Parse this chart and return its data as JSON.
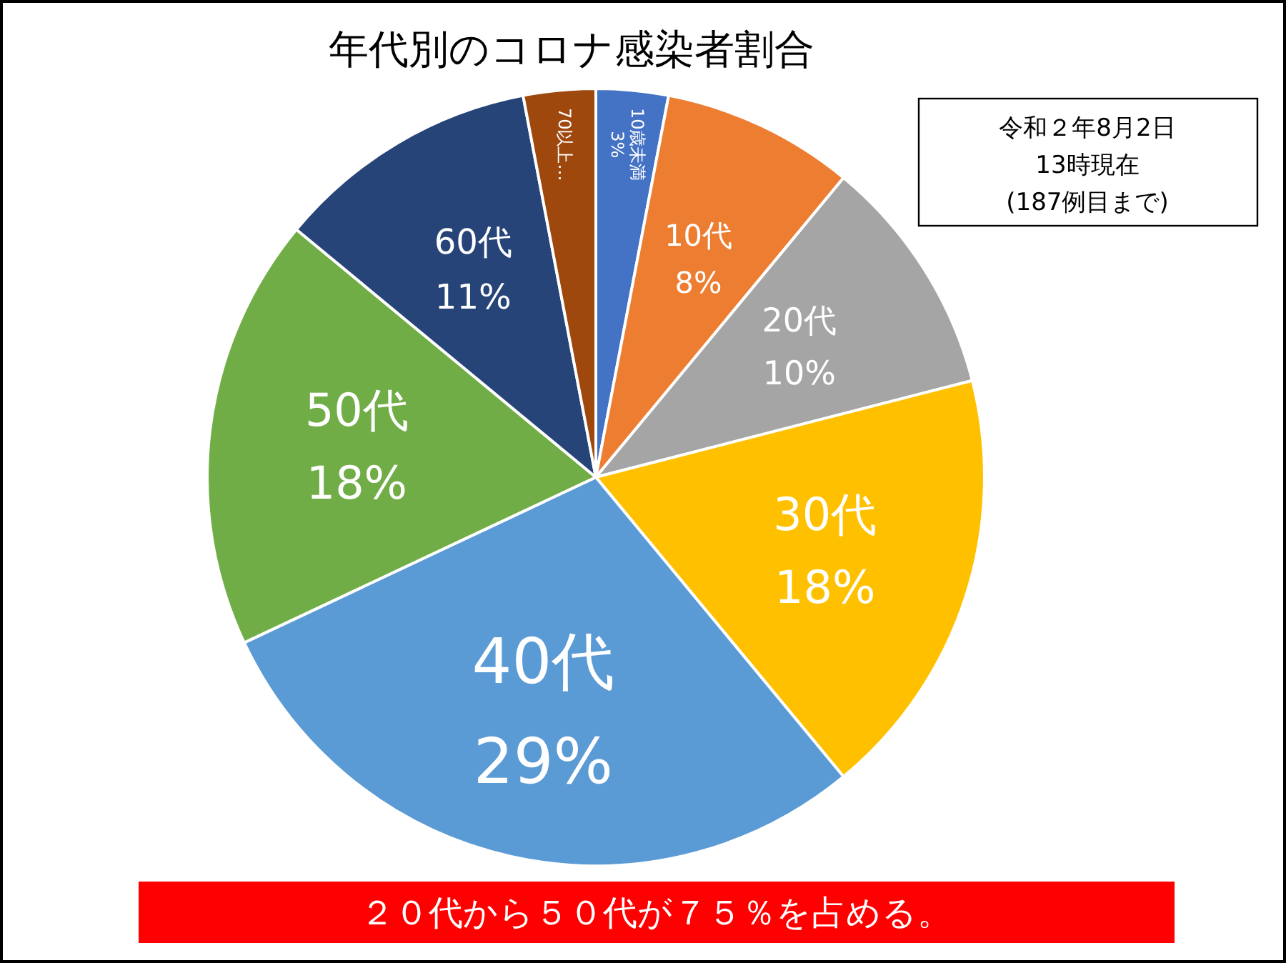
{
  "chart_data": {
    "type": "pie",
    "title": "年代別のコロナ感染者割合",
    "categories": [
      "10歳未満",
      "10代",
      "20代",
      "30代",
      "40代",
      "50代",
      "60代",
      "70以上…"
    ],
    "values": [
      3,
      8,
      10,
      18,
      29,
      18,
      11,
      3
    ],
    "colors": [
      "#4472c4",
      "#ed7d31",
      "#a5a5a5",
      "#ffc000",
      "#5b9bd5",
      "#70ad47",
      "#264478",
      "#9e480e"
    ],
    "value_labels": [
      "3%",
      "8%",
      "10%",
      "18%",
      "29%",
      "18%",
      "11%",
      null
    ],
    "annotations": [
      "令和２年8月2日\n13時現在\n(187例目まで)",
      "２０代から５０代が７５％を占める。"
    ]
  }
}
